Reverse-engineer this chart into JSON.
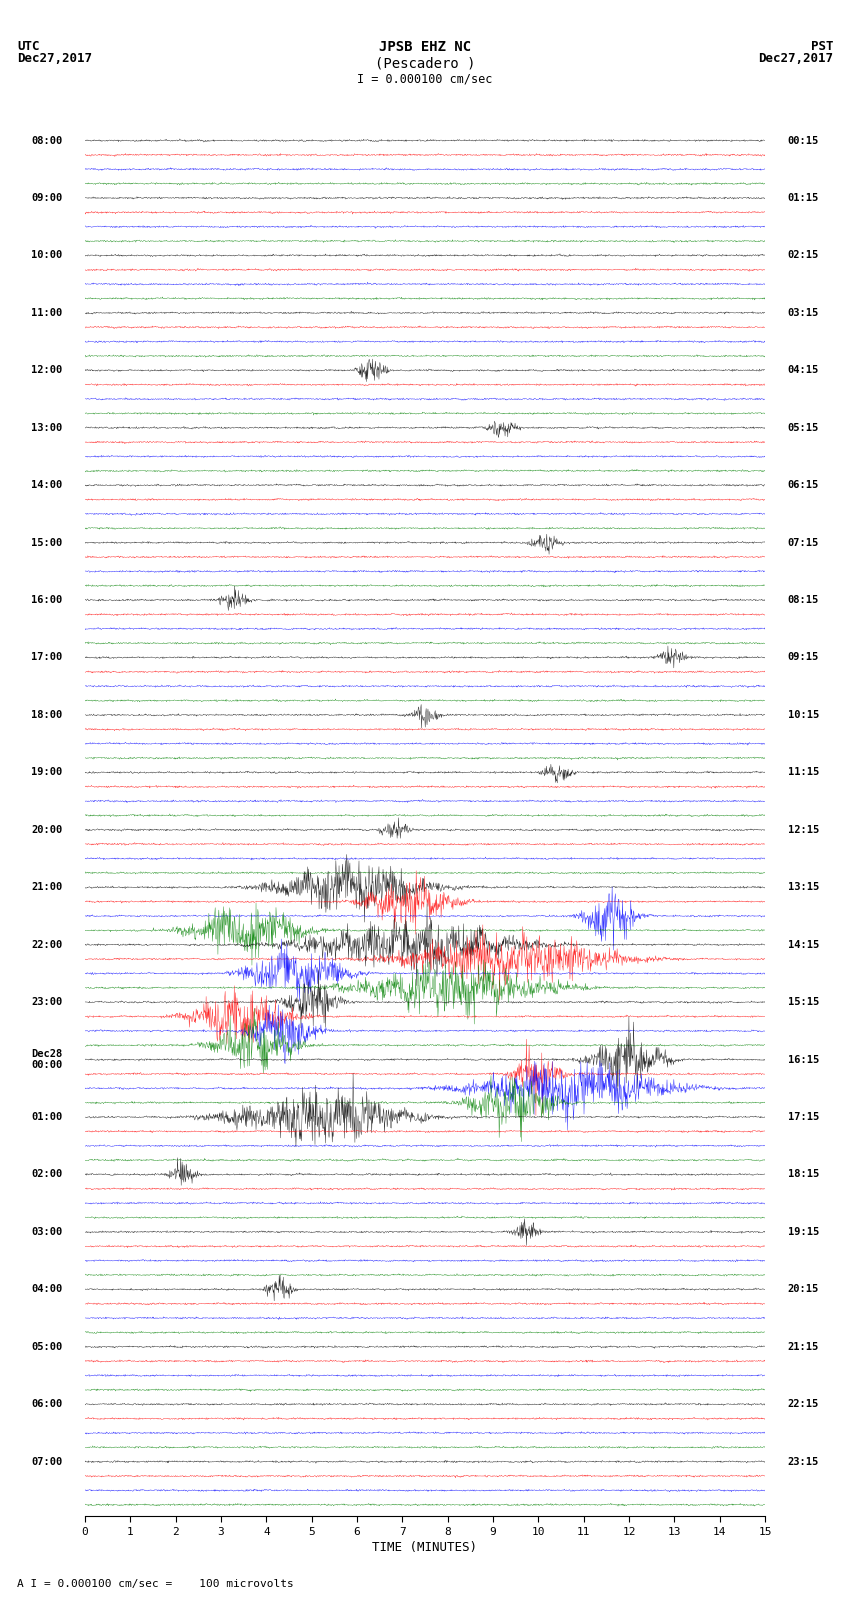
{
  "title_line1": "JPSB EHZ NC",
  "title_line2": "(Pescadero )",
  "scale_text": "= 0.000100 cm/sec",
  "bottom_text": "= 0.000100 cm/sec =    100 microvolts",
  "left_header": "UTC\nDec27,2017",
  "right_header": "PST\nDec27,2017",
  "xlabel": "TIME (MINUTES)",
  "xlim": [
    0,
    15
  ],
  "xticks": [
    0,
    1,
    2,
    3,
    4,
    5,
    6,
    7,
    8,
    9,
    10,
    11,
    12,
    13,
    14,
    15
  ],
  "bg_color": "#ffffff",
  "trace_colors": [
    "black",
    "red",
    "blue",
    "green"
  ],
  "n_rows": 96,
  "trace_amplitude": 0.35,
  "noise_scale": 0.08,
  "seed": 42,
  "left_times": [
    "08:00",
    "",
    "",
    "",
    "09:00",
    "",
    "",
    "",
    "10:00",
    "",
    "",
    "",
    "11:00",
    "",
    "",
    "",
    "12:00",
    "",
    "",
    "",
    "13:00",
    "",
    "",
    "",
    "14:00",
    "",
    "",
    "",
    "15:00",
    "",
    "",
    "",
    "16:00",
    "",
    "",
    "",
    "17:00",
    "",
    "",
    "",
    "18:00",
    "",
    "",
    "",
    "19:00",
    "",
    "",
    "",
    "20:00",
    "",
    "",
    "",
    "21:00",
    "",
    "",
    "",
    "22:00",
    "",
    "",
    "",
    "23:00",
    "",
    "",
    "",
    "Dec28\n00:00",
    "",
    "",
    "",
    "01:00",
    "",
    "",
    "",
    "02:00",
    "",
    "",
    "",
    "03:00",
    "",
    "",
    "",
    "04:00",
    "",
    "",
    "",
    "05:00",
    "",
    "",
    "",
    "06:00",
    "",
    "",
    "",
    "07:00",
    "",
    "",
    ""
  ],
  "right_times": [
    "00:15",
    "",
    "",
    "",
    "01:15",
    "",
    "",
    "",
    "02:15",
    "",
    "",
    "",
    "03:15",
    "",
    "",
    "",
    "04:15",
    "",
    "",
    "",
    "05:15",
    "",
    "",
    "",
    "06:15",
    "",
    "",
    "",
    "07:15",
    "",
    "",
    "",
    "08:15",
    "",
    "",
    "",
    "09:15",
    "",
    "",
    "",
    "10:15",
    "",
    "",
    "",
    "11:15",
    "",
    "",
    "",
    "12:15",
    "",
    "",
    "",
    "13:15",
    "",
    "",
    "",
    "14:15",
    "",
    "",
    "",
    "15:15",
    "",
    "",
    "",
    "16:15",
    "",
    "",
    "",
    "17:15",
    "",
    "",
    "",
    "18:15",
    "",
    "",
    "",
    "19:15",
    "",
    "",
    "",
    "20:15",
    "",
    "",
    "",
    "21:15",
    "",
    "",
    "",
    "22:15",
    "",
    "",
    "",
    "23:15",
    "",
    "",
    ""
  ],
  "event_rows": [
    52,
    53,
    54,
    55,
    56,
    57,
    58,
    59,
    60,
    61,
    62,
    63,
    64,
    65,
    66,
    67,
    68
  ],
  "event_amplitude": 2.5,
  "spike_rows": [
    16,
    20,
    28,
    32,
    36,
    40,
    44,
    48,
    72,
    76,
    80
  ],
  "spike_amplitude": 1.2
}
